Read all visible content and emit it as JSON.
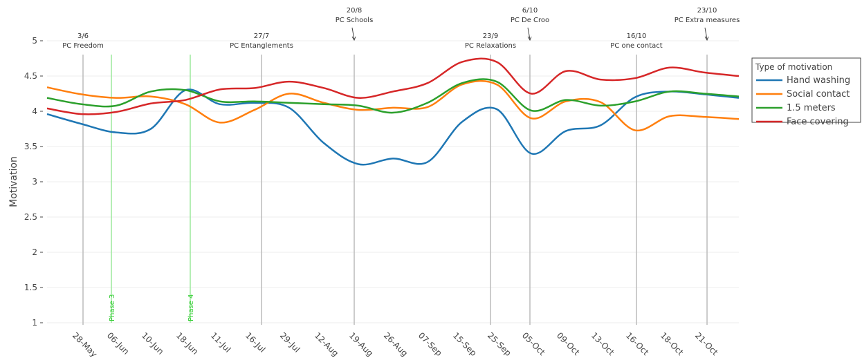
{
  "chart_data": {
    "type": "line",
    "y_label": "Motivation",
    "categories": [
      null,
      "28-May",
      "06-Jun",
      "10-Jun",
      "18-Jun",
      "11-Jul",
      "16-Jul",
      "29-Jul",
      "12-Aug",
      "19-Aug",
      "26-Aug",
      "07-Sep",
      "15-Sep",
      "25-Sep",
      "05-Oct",
      "09-Oct",
      "13-Oct",
      "16-Oct",
      "18-Oct",
      "21-Oct",
      null
    ],
    "series": [
      {
        "name": "Hand washing",
        "color": "#1f77b4",
        "values": [
          3.96,
          3.82,
          3.7,
          3.75,
          4.3,
          4.1,
          4.12,
          4.05,
          3.55,
          3.25,
          3.33,
          3.28,
          3.85,
          4.03,
          3.4,
          3.72,
          3.8,
          4.2,
          4.28,
          4.24,
          4.19
        ]
      },
      {
        "name": "Social contact",
        "color": "#ff7f0e",
        "values": [
          4.34,
          4.24,
          4.19,
          4.21,
          4.1,
          3.84,
          4.02,
          4.25,
          4.12,
          4.02,
          4.05,
          4.06,
          4.38,
          4.38,
          3.9,
          4.14,
          4.13,
          3.73,
          3.93,
          3.92,
          3.89
        ]
      },
      {
        "name": "1.5 meters",
        "color": "#2ca02c",
        "values": [
          4.19,
          4.1,
          4.08,
          4.28,
          4.3,
          4.14,
          4.14,
          4.12,
          4.1,
          4.08,
          3.98,
          4.12,
          4.4,
          4.42,
          4.01,
          4.16,
          4.08,
          4.14,
          4.28,
          4.25,
          4.21
        ]
      },
      {
        "name": "Face covering",
        "color": "#d62728",
        "values": [
          4.04,
          3.96,
          3.99,
          4.11,
          4.16,
          4.31,
          4.33,
          4.42,
          4.33,
          4.19,
          4.28,
          4.4,
          4.7,
          4.7,
          4.25,
          4.57,
          4.45,
          4.47,
          4.62,
          4.55,
          4.5
        ]
      }
    ],
    "ylim": [
      1,
      5
    ],
    "yticks": [
      1,
      1.5,
      2,
      2.5,
      3,
      3.5,
      4,
      4.5,
      5
    ],
    "grid": true,
    "legend_title": "Type of motivation",
    "legend_position": "right",
    "annotations": [
      {
        "date": "3/6",
        "label": "PC Freedom"
      },
      {
        "date": "27/7",
        "label": "PC Entanglements"
      },
      {
        "date": "20/8",
        "label": "PC Schools"
      },
      {
        "date": "23/9",
        "label": "PC Relaxations"
      },
      {
        "date": "6/10",
        "label": "PC De Croo"
      },
      {
        "date": "16/10",
        "label": "PC one contact"
      },
      {
        "date": "23/10",
        "label": "PC Extra measures"
      }
    ],
    "phases": [
      "Phase 3",
      "Phase 4"
    ]
  }
}
